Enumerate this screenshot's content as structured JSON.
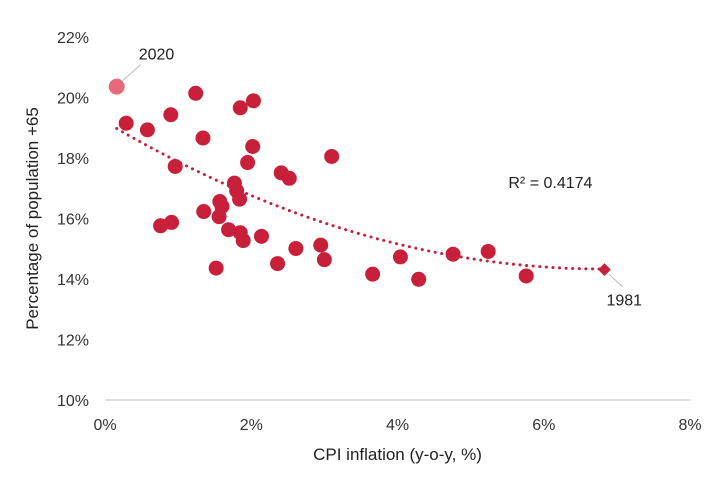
{
  "chart_data": {
    "type": "scatter",
    "xlabel": "CPI inflation (y-o-y, %)",
    "ylabel": "Percentage of population +65",
    "xlim": [
      0,
      8
    ],
    "ylim": [
      10,
      22
    ],
    "x_ticks": [
      0,
      2,
      4,
      6,
      8
    ],
    "x_tick_labels": [
      "0%",
      "2%",
      "4%",
      "6%",
      "8%"
    ],
    "y_ticks": [
      10,
      12,
      14,
      16,
      18,
      20,
      22
    ],
    "y_tick_labels": [
      "10%",
      "12%",
      "14%",
      "16%",
      "18%",
      "20%",
      "22%"
    ],
    "grid": false,
    "colors": {
      "points": "#c8203a",
      "highlight": "#e66a7a",
      "trend": "#c8203a",
      "leader": "#bbbbbb"
    },
    "points": [
      {
        "x": 0.29,
        "y": 19.15
      },
      {
        "x": 0.58,
        "y": 18.93
      },
      {
        "x": 0.9,
        "y": 19.43
      },
      {
        "x": 0.96,
        "y": 17.72
      },
      {
        "x": 0.76,
        "y": 15.76
      },
      {
        "x": 0.91,
        "y": 15.87
      },
      {
        "x": 1.24,
        "y": 20.14
      },
      {
        "x": 1.34,
        "y": 18.66
      },
      {
        "x": 1.35,
        "y": 16.23
      },
      {
        "x": 1.52,
        "y": 14.36
      },
      {
        "x": 1.56,
        "y": 16.06
      },
      {
        "x": 1.57,
        "y": 16.56
      },
      {
        "x": 1.6,
        "y": 16.4
      },
      {
        "x": 1.69,
        "y": 15.63
      },
      {
        "x": 1.77,
        "y": 17.17
      },
      {
        "x": 1.8,
        "y": 16.92
      },
      {
        "x": 1.84,
        "y": 16.64
      },
      {
        "x": 1.85,
        "y": 15.53
      },
      {
        "x": 1.85,
        "y": 19.66
      },
      {
        "x": 1.89,
        "y": 15.27
      },
      {
        "x": 1.95,
        "y": 17.85
      },
      {
        "x": 2.02,
        "y": 18.38
      },
      {
        "x": 2.03,
        "y": 19.89
      },
      {
        "x": 2.14,
        "y": 15.41
      },
      {
        "x": 2.36,
        "y": 14.51
      },
      {
        "x": 2.41,
        "y": 17.51
      },
      {
        "x": 2.52,
        "y": 17.33
      },
      {
        "x": 2.61,
        "y": 15.01
      },
      {
        "x": 2.95,
        "y": 15.12
      },
      {
        "x": 3.0,
        "y": 14.64
      },
      {
        "x": 3.1,
        "y": 18.05
      },
      {
        "x": 3.66,
        "y": 14.16
      },
      {
        "x": 4.04,
        "y": 14.73
      },
      {
        "x": 4.29,
        "y": 13.99
      },
      {
        "x": 4.76,
        "y": 14.82
      },
      {
        "x": 5.24,
        "y": 14.91
      },
      {
        "x": 5.76,
        "y": 14.1
      }
    ],
    "highlight_points": [
      {
        "x": 0.16,
        "y": 20.36,
        "label": "2020",
        "marker": "circle"
      },
      {
        "x": 6.83,
        "y": 14.31,
        "label": "1981",
        "marker": "diamond"
      }
    ],
    "trendline": {
      "type": "polynomial",
      "coefficients": [
        19.2,
        -1.43,
        0.105
      ],
      "x_range": [
        0.16,
        6.83
      ],
      "style": "dotted"
    },
    "annotations": [
      {
        "text": "R² = 0.4174",
        "x": 6.2,
        "y": 17.2
      }
    ]
  }
}
